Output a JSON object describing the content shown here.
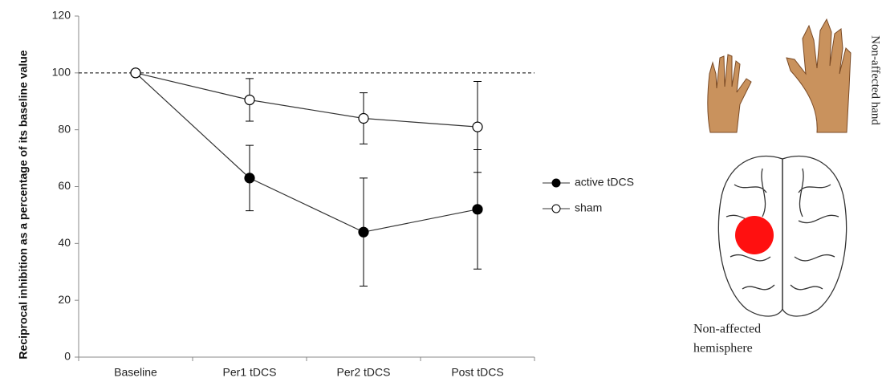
{
  "chart_data": {
    "type": "line",
    "y_label": "Reciprocal inhibition as a percentage of its baseline value",
    "categories": [
      "Baseline",
      "Per1 tDCS",
      "Per2 tDCS",
      "Post tDCS"
    ],
    "series": [
      {
        "name": "active tDCS",
        "color": "#000000",
        "marker": "filled",
        "values": [
          100,
          63,
          44,
          52
        ],
        "errors": [
          0,
          11.5,
          19,
          21
        ]
      },
      {
        "name": "sham",
        "color": "#ffffff",
        "marker": "open",
        "values": [
          100,
          90.5,
          84,
          81
        ],
        "errors": [
          0,
          7.5,
          9,
          16
        ]
      }
    ],
    "reference_line": 100,
    "ylim": [
      0,
      120
    ],
    "yticks": [
      0,
      20,
      40,
      60,
      80,
      100,
      120
    ],
    "annotations": [
      "Non-affected hand",
      "Non-affected",
      "hemisphere"
    ]
  }
}
